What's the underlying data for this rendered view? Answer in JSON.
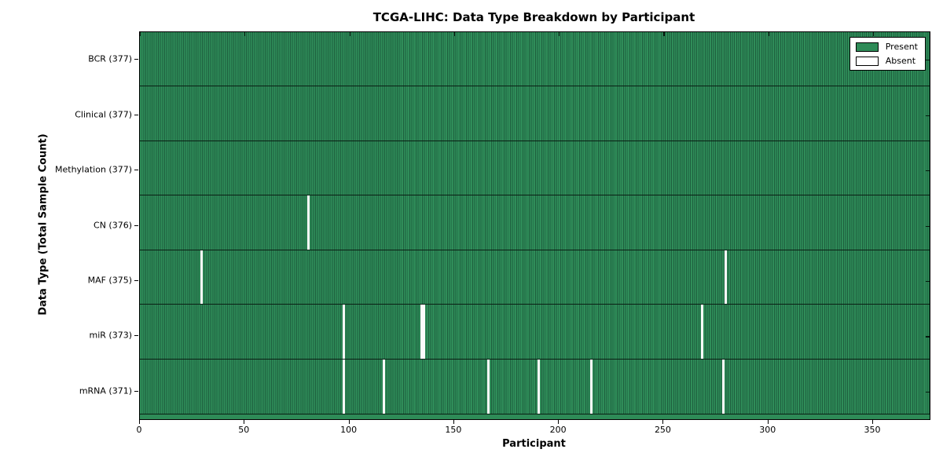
{
  "title": "TCGA-LIHC: Data Type Breakdown by Participant",
  "chart_data": {
    "type": "heatmap",
    "title": "TCGA-LIHC: Data Type Breakdown by Participant",
    "xlabel": "Participant",
    "ylabel": "Data Type (Total Sample Count)",
    "x_range": [
      0,
      377
    ],
    "x_ticks": [
      0,
      50,
      100,
      150,
      200,
      250,
      300,
      350
    ],
    "n_participants": 377,
    "grid": false,
    "legend_position": "upper right",
    "legend": [
      {
        "label": "Present",
        "color": "#2e8b57"
      },
      {
        "label": "Absent",
        "color": "#ffffff"
      }
    ],
    "colors": {
      "present": "#2e8b57",
      "present_dark_stripe": "#1e5f3e",
      "absent": "#ffffff",
      "border": "#000000"
    },
    "rows": [
      {
        "data_type": "BCR",
        "total": 377,
        "label": "BCR (377)",
        "absent_participants": []
      },
      {
        "data_type": "Clinical",
        "total": 377,
        "label": "Clinical (377)",
        "absent_participants": []
      },
      {
        "data_type": "Methylation",
        "total": 377,
        "label": "Methylation (377)",
        "absent_participants": []
      },
      {
        "data_type": "CN",
        "total": 376,
        "label": "CN (376)",
        "absent_participants": [
          80
        ]
      },
      {
        "data_type": "MAF",
        "total": 375,
        "label": "MAF (375)",
        "absent_participants": [
          29,
          279
        ]
      },
      {
        "data_type": "miR",
        "total": 373,
        "label": "miR (373)",
        "absent_participants": [
          97,
          134,
          135,
          268
        ]
      },
      {
        "data_type": "mRNA",
        "total": 371,
        "label": "mRNA (371)",
        "absent_participants": [
          97,
          116,
          166,
          190,
          215,
          278
        ]
      }
    ]
  }
}
